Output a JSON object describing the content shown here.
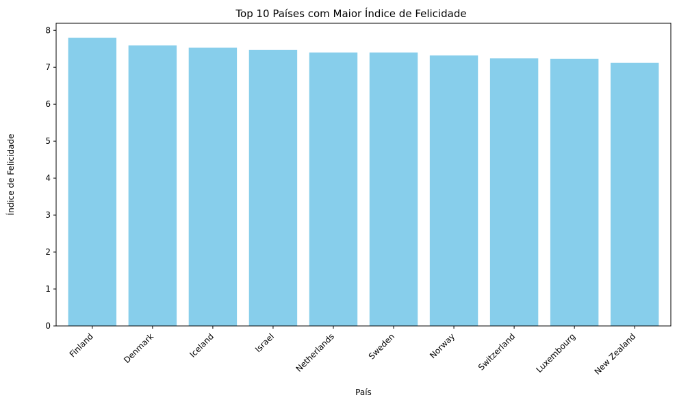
{
  "chart_data": {
    "type": "bar",
    "title": "Top 10 Países com Maior Índice de Felicidade",
    "xlabel": "País",
    "ylabel": "Índice de Felicidade",
    "categories": [
      "Finland",
      "Denmark",
      "Iceland",
      "Israel",
      "Netherlands",
      "Sweden",
      "Norway",
      "Switzerland",
      "Luxembourg",
      "New Zealand"
    ],
    "values": [
      7.8,
      7.59,
      7.53,
      7.47,
      7.4,
      7.4,
      7.32,
      7.24,
      7.23,
      7.12
    ],
    "ylim": [
      0,
      8.19
    ],
    "yticks": [
      0,
      1,
      2,
      3,
      4,
      5,
      6,
      7,
      8
    ],
    "grid": false,
    "legend": "none",
    "bar_color": "#87ceeb"
  }
}
